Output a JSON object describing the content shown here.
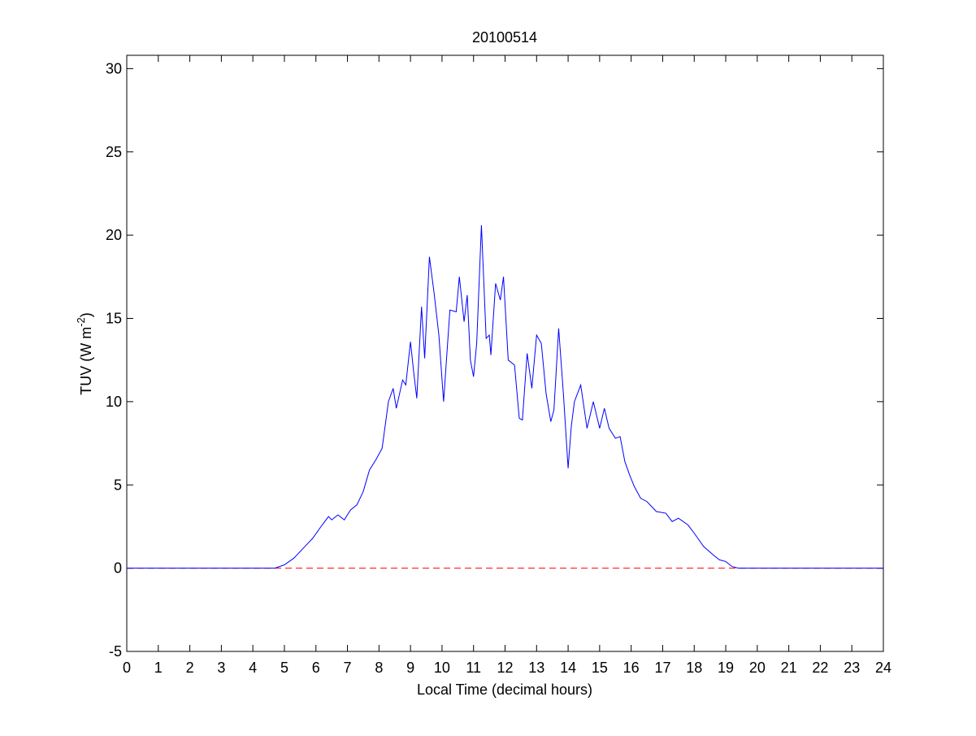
{
  "chart_data": {
    "type": "line",
    "title": "20100514",
    "xlabel": "Local Time (decimal hours)",
    "ylabel": [
      "TUV (W m",
      "-2",
      ")"
    ],
    "xlim": [
      0,
      24
    ],
    "ylim": [
      -5,
      30.8
    ],
    "xticks": [
      0,
      1,
      2,
      3,
      4,
      5,
      6,
      7,
      8,
      9,
      10,
      11,
      12,
      13,
      14,
      15,
      16,
      17,
      18,
      19,
      20,
      21,
      22,
      23,
      24
    ],
    "yticks": [
      -5,
      0,
      5,
      10,
      15,
      20,
      25,
      30
    ],
    "grid": false,
    "reference_line": {
      "value": 0,
      "color": "#ff0000",
      "style": "dashed"
    },
    "series": [
      {
        "color": "#0000ff",
        "x": [
          0,
          4.7,
          5.0,
          5.3,
          5.6,
          5.9,
          6.2,
          6.4,
          6.5,
          6.7,
          6.9,
          7.1,
          7.3,
          7.5,
          7.7,
          7.9,
          8.1,
          8.3,
          8.45,
          8.55,
          8.75,
          8.85,
          9.0,
          9.1,
          9.2,
          9.35,
          9.45,
          9.6,
          9.75,
          9.9,
          10.05,
          10.25,
          10.45,
          10.55,
          10.7,
          10.8,
          10.9,
          11.0,
          11.1,
          11.25,
          11.4,
          11.5,
          11.55,
          11.7,
          11.85,
          11.95,
          12.1,
          12.3,
          12.45,
          12.55,
          12.7,
          12.85,
          13.0,
          13.15,
          13.3,
          13.45,
          13.55,
          13.7,
          13.85,
          14.0,
          14.1,
          14.2,
          14.4,
          14.6,
          14.8,
          15.0,
          15.15,
          15.3,
          15.5,
          15.65,
          15.8,
          15.95,
          16.1,
          16.3,
          16.5,
          16.8,
          17.1,
          17.3,
          17.5,
          17.8,
          18.0,
          18.3,
          18.6,
          18.8,
          19.0,
          19.2,
          19.4,
          24
        ],
        "values": [
          0,
          0,
          0.2,
          0.6,
          1.2,
          1.8,
          2.6,
          3.1,
          2.9,
          3.2,
          2.9,
          3.5,
          3.8,
          4.6,
          5.9,
          6.5,
          7.2,
          10.0,
          10.8,
          9.6,
          11.3,
          11.0,
          13.6,
          11.8,
          10.2,
          15.7,
          12.6,
          18.7,
          16.5,
          14.0,
          10.0,
          15.5,
          15.4,
          17.5,
          14.8,
          16.4,
          12.5,
          11.5,
          13.5,
          20.6,
          13.8,
          14.0,
          12.8,
          17.1,
          16.1,
          17.5,
          12.5,
          12.2,
          9.0,
          8.9,
          12.9,
          10.8,
          14.0,
          13.5,
          10.5,
          8.8,
          9.5,
          14.4,
          10.5,
          6.0,
          8.5,
          10.0,
          11.0,
          8.4,
          10.0,
          8.4,
          9.6,
          8.4,
          7.8,
          7.9,
          6.4,
          5.6,
          4.9,
          4.2,
          4.0,
          3.4,
          3.3,
          2.8,
          3.0,
          2.6,
          2.1,
          1.3,
          0.8,
          0.5,
          0.4,
          0.1,
          0,
          0
        ]
      }
    ]
  }
}
